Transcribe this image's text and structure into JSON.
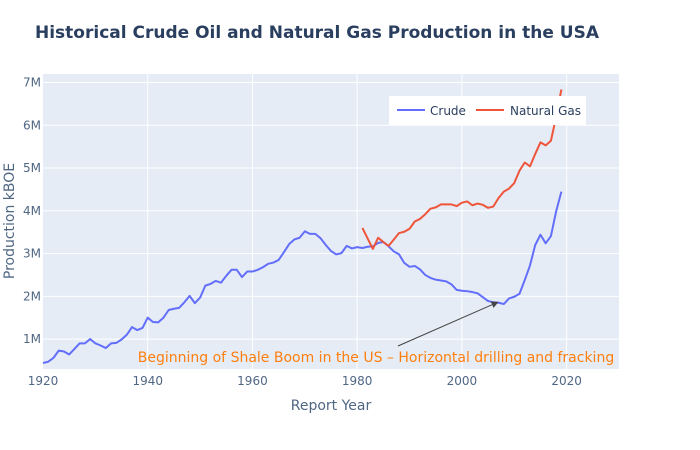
{
  "chart_data": {
    "type": "line",
    "title": "Historical Crude Oil and Natural Gas Production in the USA",
    "xlabel": "Report Year",
    "ylabel": "Production kBOE",
    "xlim": [
      1920,
      2030
    ],
    "ylim": [
      300000,
      7200000
    ],
    "x_ticks": [
      1920,
      1940,
      1960,
      1980,
      2000,
      2020
    ],
    "y_ticks": [
      1000000,
      2000000,
      3000000,
      4000000,
      5000000,
      6000000,
      7000000
    ],
    "y_tick_labels": [
      "1M",
      "2M",
      "3M",
      "4M",
      "5M",
      "6M",
      "7M"
    ],
    "grid": true,
    "legend_position": "top-right",
    "series": [
      {
        "name": "Crude",
        "color": "#636efa",
        "points": [
          [
            1920,
            440000
          ],
          [
            1921,
            470000
          ],
          [
            1922,
            560000
          ],
          [
            1923,
            730000
          ],
          [
            1924,
            710000
          ],
          [
            1925,
            640000
          ],
          [
            1926,
            770000
          ],
          [
            1927,
            900000
          ],
          [
            1928,
            900000
          ],
          [
            1929,
            1000000
          ],
          [
            1930,
            900000
          ],
          [
            1931,
            850000
          ],
          [
            1932,
            790000
          ],
          [
            1933,
            900000
          ],
          [
            1934,
            910000
          ],
          [
            1935,
            990000
          ],
          [
            1936,
            1100000
          ],
          [
            1937,
            1280000
          ],
          [
            1938,
            1210000
          ],
          [
            1939,
            1260000
          ],
          [
            1940,
            1500000
          ],
          [
            1941,
            1400000
          ],
          [
            1942,
            1390000
          ],
          [
            1943,
            1500000
          ],
          [
            1944,
            1680000
          ],
          [
            1945,
            1710000
          ],
          [
            1946,
            1730000
          ],
          [
            1947,
            1860000
          ],
          [
            1948,
            2010000
          ],
          [
            1949,
            1840000
          ],
          [
            1950,
            1970000
          ],
          [
            1951,
            2250000
          ],
          [
            1952,
            2290000
          ],
          [
            1953,
            2360000
          ],
          [
            1954,
            2320000
          ],
          [
            1955,
            2480000
          ],
          [
            1956,
            2620000
          ],
          [
            1957,
            2620000
          ],
          [
            1958,
            2450000
          ],
          [
            1959,
            2580000
          ],
          [
            1960,
            2580000
          ],
          [
            1961,
            2620000
          ],
          [
            1962,
            2680000
          ],
          [
            1963,
            2760000
          ],
          [
            1964,
            2790000
          ],
          [
            1965,
            2850000
          ],
          [
            1966,
            3030000
          ],
          [
            1967,
            3220000
          ],
          [
            1968,
            3330000
          ],
          [
            1969,
            3370000
          ],
          [
            1970,
            3520000
          ],
          [
            1971,
            3460000
          ],
          [
            1972,
            3460000
          ],
          [
            1973,
            3360000
          ],
          [
            1974,
            3200000
          ],
          [
            1975,
            3060000
          ],
          [
            1976,
            2980000
          ],
          [
            1977,
            3010000
          ],
          [
            1978,
            3180000
          ],
          [
            1979,
            3120000
          ],
          [
            1980,
            3150000
          ],
          [
            1981,
            3130000
          ],
          [
            1982,
            3160000
          ],
          [
            1983,
            3170000
          ],
          [
            1984,
            3250000
          ],
          [
            1985,
            3270000
          ],
          [
            1986,
            3170000
          ],
          [
            1987,
            3050000
          ],
          [
            1988,
            2980000
          ],
          [
            1989,
            2780000
          ],
          [
            1990,
            2690000
          ],
          [
            1991,
            2710000
          ],
          [
            1992,
            2630000
          ],
          [
            1993,
            2500000
          ],
          [
            1994,
            2430000
          ],
          [
            1995,
            2390000
          ],
          [
            1996,
            2370000
          ],
          [
            1997,
            2350000
          ],
          [
            1998,
            2280000
          ],
          [
            1999,
            2150000
          ],
          [
            2000,
            2130000
          ],
          [
            2001,
            2120000
          ],
          [
            2002,
            2100000
          ],
          [
            2003,
            2070000
          ],
          [
            2004,
            1980000
          ],
          [
            2005,
            1890000
          ],
          [
            2006,
            1860000
          ],
          [
            2007,
            1850000
          ],
          [
            2008,
            1820000
          ],
          [
            2009,
            1950000
          ],
          [
            2010,
            1990000
          ],
          [
            2011,
            2060000
          ],
          [
            2012,
            2380000
          ],
          [
            2013,
            2720000
          ],
          [
            2014,
            3200000
          ],
          [
            2015,
            3440000
          ],
          [
            2016,
            3240000
          ],
          [
            2017,
            3410000
          ],
          [
            2018,
            3990000
          ],
          [
            2019,
            4450000
          ]
        ]
      },
      {
        "name": "Natural Gas",
        "color": "#ef553b",
        "points": [
          [
            1981,
            3600000
          ],
          [
            1982,
            3350000
          ],
          [
            1983,
            3110000
          ],
          [
            1984,
            3370000
          ],
          [
            1985,
            3270000
          ],
          [
            1986,
            3180000
          ],
          [
            1987,
            3330000
          ],
          [
            1988,
            3480000
          ],
          [
            1989,
            3510000
          ],
          [
            1990,
            3580000
          ],
          [
            1991,
            3750000
          ],
          [
            1992,
            3810000
          ],
          [
            1993,
            3920000
          ],
          [
            1994,
            4050000
          ],
          [
            1995,
            4080000
          ],
          [
            1996,
            4150000
          ],
          [
            1997,
            4150000
          ],
          [
            1998,
            4150000
          ],
          [
            1999,
            4110000
          ],
          [
            2000,
            4190000
          ],
          [
            2001,
            4220000
          ],
          [
            2002,
            4130000
          ],
          [
            2003,
            4170000
          ],
          [
            2004,
            4140000
          ],
          [
            2005,
            4070000
          ],
          [
            2006,
            4100000
          ],
          [
            2007,
            4300000
          ],
          [
            2008,
            4450000
          ],
          [
            2009,
            4520000
          ],
          [
            2010,
            4650000
          ],
          [
            2011,
            4940000
          ],
          [
            2012,
            5130000
          ],
          [
            2013,
            5040000
          ],
          [
            2014,
            5330000
          ],
          [
            2015,
            5600000
          ],
          [
            2016,
            5530000
          ],
          [
            2017,
            5640000
          ],
          [
            2018,
            6200000
          ],
          [
            2019,
            6840000
          ]
        ]
      }
    ],
    "annotations": [
      {
        "text": "Beginning of Shale Boom in the US – Horizontal drilling and fracking",
        "color": "#ff7f0e",
        "arrow_to": [
          2007,
          1870000
        ]
      }
    ]
  }
}
